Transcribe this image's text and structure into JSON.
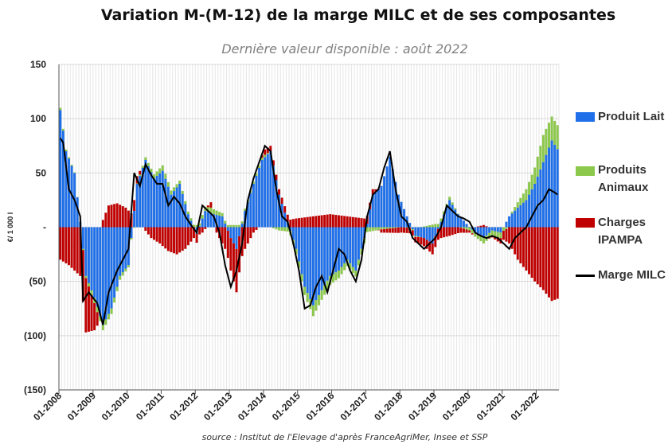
{
  "title": "Variation M-(M-12) de la marge MILC et de ses composantes",
  "subtitle": "Dernière valeur disponible : août 2022",
  "source": "source : Institut de l'Elevage d'après FranceAgriMer, Insee et SSP",
  "chart_data": {
    "type": "bar",
    "stacked": true,
    "ylabel": "€/ 1 000 l",
    "ylim": [
      -150,
      150
    ],
    "yticks": [
      150,
      100,
      50,
      0,
      -50,
      -100,
      -150
    ],
    "ytick_labels": [
      "150",
      "100",
      "50",
      "-",
      "(50)",
      "(100)",
      "(150)"
    ],
    "grid": true,
    "legend_position": "right",
    "x_start": "2008-01",
    "x_end": "2022-08",
    "xtick_labels": [
      "01-2008",
      "01-2009",
      "01-2010",
      "01-2011",
      "01-2012",
      "01-2013",
      "01-2014",
      "01-2015",
      "01-2016",
      "01-2017",
      "01-2018",
      "01-2019",
      "01-2020",
      "01-2021",
      "01-2022"
    ],
    "anchors": {
      "lait": [
        [
          "2008-01",
          108
        ],
        [
          "2008-03",
          70
        ],
        [
          "2008-06",
          50
        ],
        [
          "2008-08",
          5
        ],
        [
          "2008-10",
          -45
        ],
        [
          "2009-01",
          -65
        ],
        [
          "2009-04",
          -90
        ],
        [
          "2009-07",
          -75
        ],
        [
          "2009-10",
          -45
        ],
        [
          "2010-01",
          -35
        ],
        [
          "2010-04",
          40
        ],
        [
          "2010-07",
          62
        ],
        [
          "2010-10",
          45
        ],
        [
          "2011-01",
          52
        ],
        [
          "2011-04",
          30
        ],
        [
          "2011-07",
          40
        ],
        [
          "2011-10",
          12
        ],
        [
          "2012-01",
          -6
        ],
        [
          "2012-04",
          15
        ],
        [
          "2012-07",
          12
        ],
        [
          "2012-10",
          10
        ],
        [
          "2013-01",
          -10
        ],
        [
          "2013-03",
          -20
        ],
        [
          "2013-06",
          15
        ],
        [
          "2013-09",
          40
        ],
        [
          "2013-12",
          62
        ],
        [
          "2014-03",
          70
        ],
        [
          "2014-06",
          30
        ],
        [
          "2014-09",
          5
        ],
        [
          "2014-12",
          -20
        ],
        [
          "2015-03",
          -55
        ],
        [
          "2015-06",
          -72
        ],
        [
          "2015-09",
          -58
        ],
        [
          "2015-12",
          -45
        ],
        [
          "2016-03",
          -40
        ],
        [
          "2016-06",
          -30
        ],
        [
          "2016-09",
          -40
        ],
        [
          "2016-12",
          -10
        ],
        [
          "2017-03",
          30
        ],
        [
          "2017-06",
          38
        ],
        [
          "2017-09",
          65
        ],
        [
          "2017-12",
          30
        ],
        [
          "2018-03",
          10
        ],
        [
          "2018-06",
          -8
        ],
        [
          "2018-09",
          -10
        ],
        [
          "2018-12",
          -15
        ],
        [
          "2019-03",
          5
        ],
        [
          "2019-06",
          25
        ],
        [
          "2019-09",
          12
        ],
        [
          "2019-12",
          3
        ],
        [
          "2020-03",
          -5
        ],
        [
          "2020-06",
          -10
        ],
        [
          "2020-09",
          -3
        ],
        [
          "2020-12",
          -5
        ],
        [
          "2021-03",
          10
        ],
        [
          "2021-06",
          18
        ],
        [
          "2021-09",
          25
        ],
        [
          "2021-12",
          40
        ],
        [
          "2022-03",
          60
        ],
        [
          "2022-06",
          80
        ],
        [
          "2022-08",
          72
        ]
      ],
      "anim": [
        [
          "2008-01",
          2
        ],
        [
          "2008-08",
          0
        ],
        [
          "2009-01",
          -5
        ],
        [
          "2009-04",
          -5
        ],
        [
          "2009-07",
          -5
        ],
        [
          "2010-01",
          -2
        ],
        [
          "2010-06",
          2
        ],
        [
          "2011-01",
          5
        ],
        [
          "2011-06",
          3
        ],
        [
          "2012-01",
          2
        ],
        [
          "2012-06",
          5
        ],
        [
          "2012-12",
          2
        ],
        [
          "2013-06",
          2
        ],
        [
          "2014-01",
          2
        ],
        [
          "2014-06",
          -3
        ],
        [
          "2014-12",
          -5
        ],
        [
          "2015-06",
          -10
        ],
        [
          "2015-12",
          -8
        ],
        [
          "2016-06",
          -6
        ],
        [
          "2016-12",
          -5
        ],
        [
          "2017-06",
          -2
        ],
        [
          "2018-01",
          0
        ],
        [
          "2018-06",
          -1
        ],
        [
          "2019-01",
          3
        ],
        [
          "2019-06",
          3
        ],
        [
          "2020-01",
          -3
        ],
        [
          "2020-06",
          -5
        ],
        [
          "2020-12",
          -5
        ],
        [
          "2021-06",
          5
        ],
        [
          "2021-12",
          15
        ],
        [
          "2022-03",
          25
        ],
        [
          "2022-06",
          22
        ],
        [
          "2022-08",
          22
        ]
      ],
      "charges": [
        [
          "2008-01",
          -30
        ],
        [
          "2008-04",
          -35
        ],
        [
          "2008-08",
          -45
        ],
        [
          "2008-10",
          -50
        ],
        [
          "2009-01",
          -25
        ],
        [
          "2009-03",
          0
        ],
        [
          "2009-06",
          20
        ],
        [
          "2009-09",
          22
        ],
        [
          "2009-12",
          18
        ],
        [
          "2010-03",
          10
        ],
        [
          "2010-06",
          0
        ],
        [
          "2010-09",
          -10
        ],
        [
          "2010-12",
          -15
        ],
        [
          "2011-03",
          -22
        ],
        [
          "2011-06",
          -25
        ],
        [
          "2011-09",
          -20
        ],
        [
          "2011-12",
          -10
        ],
        [
          "2012-03",
          -5
        ],
        [
          "2012-06",
          5
        ],
        [
          "2012-09",
          -10
        ],
        [
          "2012-12",
          -25
        ],
        [
          "2013-03",
          -40
        ],
        [
          "2013-06",
          -20
        ],
        [
          "2013-09",
          -5
        ],
        [
          "2014-01",
          5
        ],
        [
          "2014-06",
          5
        ],
        [
          "2014-12",
          8
        ],
        [
          "2015-06",
          10
        ],
        [
          "2015-12",
          12
        ],
        [
          "2016-06",
          10
        ],
        [
          "2016-12",
          8
        ],
        [
          "2017-03",
          5
        ],
        [
          "2017-06",
          -3
        ],
        [
          "2017-12",
          -5
        ],
        [
          "2018-06",
          -5
        ],
        [
          "2018-12",
          -10
        ],
        [
          "2019-03",
          -10
        ],
        [
          "2019-06",
          -8
        ],
        [
          "2019-12",
          -3
        ],
        [
          "2020-03",
          0
        ],
        [
          "2020-06",
          2
        ],
        [
          "2020-12",
          -5
        ],
        [
          "2021-03",
          -15
        ],
        [
          "2021-06",
          -30
        ],
        [
          "2021-09",
          -40
        ],
        [
          "2021-12",
          -50
        ],
        [
          "2022-03",
          -58
        ],
        [
          "2022-06",
          -68
        ],
        [
          "2022-08",
          -66
        ]
      ],
      "marge": [
        [
          "2008-01",
          82
        ],
        [
          "2008-02",
          78
        ],
        [
          "2008-04",
          35
        ],
        [
          "2008-06",
          25
        ],
        [
          "2008-08",
          10
        ],
        [
          "2008-09",
          -68
        ],
        [
          "2008-11",
          -60
        ],
        [
          "2009-02",
          -70
        ],
        [
          "2009-04",
          -90
        ],
        [
          "2009-06",
          -60
        ],
        [
          "2009-09",
          -40
        ],
        [
          "2009-11",
          -30
        ],
        [
          "2010-01",
          -20
        ],
        [
          "2010-03",
          50
        ],
        [
          "2010-05",
          38
        ],
        [
          "2010-07",
          58
        ],
        [
          "2010-09",
          48
        ],
        [
          "2010-11",
          40
        ],
        [
          "2011-01",
          40
        ],
        [
          "2011-03",
          20
        ],
        [
          "2011-05",
          28
        ],
        [
          "2011-07",
          22
        ],
        [
          "2011-09",
          10
        ],
        [
          "2011-11",
          2
        ],
        [
          "2012-01",
          -5
        ],
        [
          "2012-03",
          20
        ],
        [
          "2012-05",
          15
        ],
        [
          "2012-07",
          10
        ],
        [
          "2012-09",
          -5
        ],
        [
          "2012-11",
          -35
        ],
        [
          "2013-01",
          -55
        ],
        [
          "2013-03",
          -40
        ],
        [
          "2013-05",
          -15
        ],
        [
          "2013-07",
          25
        ],
        [
          "2013-09",
          45
        ],
        [
          "2013-11",
          60
        ],
        [
          "2014-01",
          75
        ],
        [
          "2014-03",
          70
        ],
        [
          "2014-05",
          35
        ],
        [
          "2014-07",
          10
        ],
        [
          "2014-09",
          5
        ],
        [
          "2014-11",
          -15
        ],
        [
          "2015-01",
          -40
        ],
        [
          "2015-03",
          -75
        ],
        [
          "2015-05",
          -72
        ],
        [
          "2015-07",
          -55
        ],
        [
          "2015-09",
          -45
        ],
        [
          "2015-11",
          -60
        ],
        [
          "2016-01",
          -40
        ],
        [
          "2016-03",
          -20
        ],
        [
          "2016-05",
          -25
        ],
        [
          "2016-07",
          -40
        ],
        [
          "2016-09",
          -50
        ],
        [
          "2016-11",
          -30
        ],
        [
          "2017-01",
          10
        ],
        [
          "2017-03",
          30
        ],
        [
          "2017-05",
          35
        ],
        [
          "2017-07",
          55
        ],
        [
          "2017-09",
          70
        ],
        [
          "2017-11",
          35
        ],
        [
          "2018-01",
          10
        ],
        [
          "2018-03",
          5
        ],
        [
          "2018-05",
          -10
        ],
        [
          "2018-07",
          -15
        ],
        [
          "2018-09",
          -20
        ],
        [
          "2018-11",
          -15
        ],
        [
          "2019-01",
          -10
        ],
        [
          "2019-03",
          0
        ],
        [
          "2019-05",
          20
        ],
        [
          "2019-07",
          15
        ],
        [
          "2019-09",
          10
        ],
        [
          "2019-11",
          8
        ],
        [
          "2020-01",
          5
        ],
        [
          "2020-03",
          -5
        ],
        [
          "2020-05",
          -8
        ],
        [
          "2020-07",
          -10
        ],
        [
          "2020-09",
          -8
        ],
        [
          "2020-11",
          -10
        ],
        [
          "2021-01",
          -15
        ],
        [
          "2021-03",
          -20
        ],
        [
          "2021-05",
          -10
        ],
        [
          "2021-07",
          -5
        ],
        [
          "2021-09",
          0
        ],
        [
          "2021-11",
          10
        ],
        [
          "2022-01",
          20
        ],
        [
          "2022-03",
          25
        ],
        [
          "2022-05",
          35
        ],
        [
          "2022-07",
          32
        ],
        [
          "2022-08",
          30
        ]
      ]
    },
    "series": [
      {
        "key": "lait",
        "name": "Produit Lait",
        "color": "#1f6fe8",
        "type": "bar"
      },
      {
        "key": "anim",
        "name": "Produits Animaux",
        "color": "#8cc84b",
        "type": "bar"
      },
      {
        "key": "charges",
        "name": "Charges IPAMPA",
        "color": "#c00000",
        "type": "bar"
      },
      {
        "key": "marge",
        "name": "Marge MILC",
        "color": "#000000",
        "type": "line"
      }
    ]
  },
  "legend": {
    "lait_l1": "Produit Lait",
    "anim_l1": "Produits",
    "anim_l2": "Animaux",
    "charges_l1": "Charges",
    "charges_l2": "IPAMPA",
    "marge_l1": "Marge MILC"
  }
}
